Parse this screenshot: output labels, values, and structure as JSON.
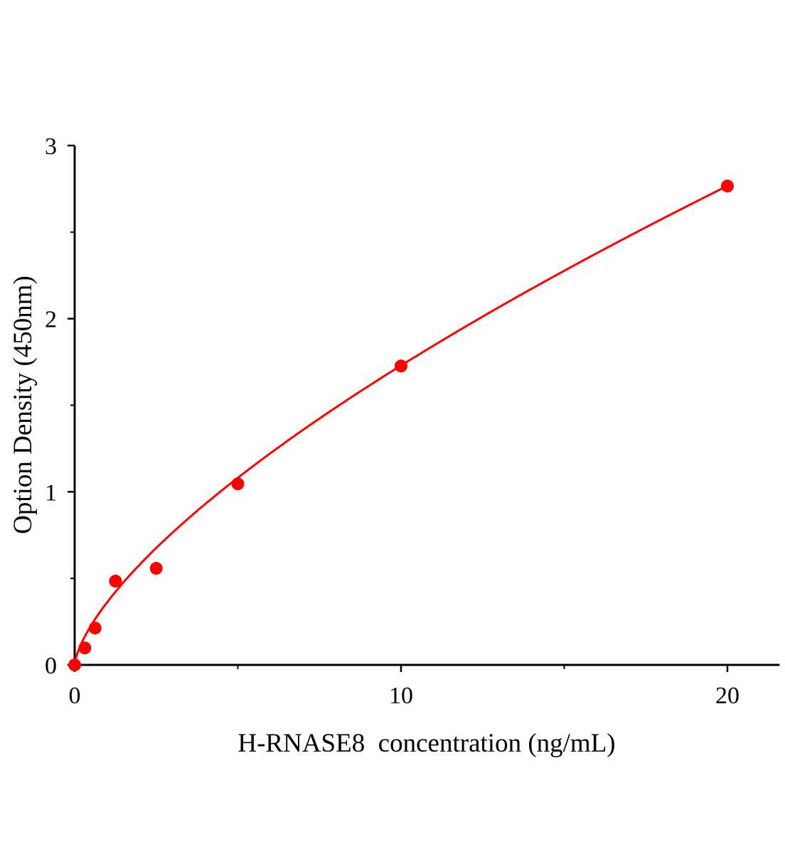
{
  "chart_data": {
    "type": "scatter",
    "title": "",
    "xlabel": "H-RNASE8  concentration (ng/mL)",
    "ylabel": "Option Density (450nm)",
    "xlim": [
      0,
      21.6
    ],
    "ylim": [
      0,
      3
    ],
    "xticks": [
      0,
      10,
      20
    ],
    "yticks": [
      0,
      1,
      2,
      3
    ],
    "xticks_minor": [
      5,
      15
    ],
    "yticks_minor": [
      0.5,
      1.5,
      2.5
    ],
    "grid": false,
    "color": "#ff0000",
    "series": [
      {
        "x": [
          0,
          0.3125,
          0.625,
          1.25,
          2.5,
          5,
          10,
          20
        ],
        "y": [
          0.0,
          0.098,
          0.213,
          0.484,
          0.558,
          1.046,
          1.727,
          2.766
        ],
        "fit": "curve"
      }
    ]
  }
}
